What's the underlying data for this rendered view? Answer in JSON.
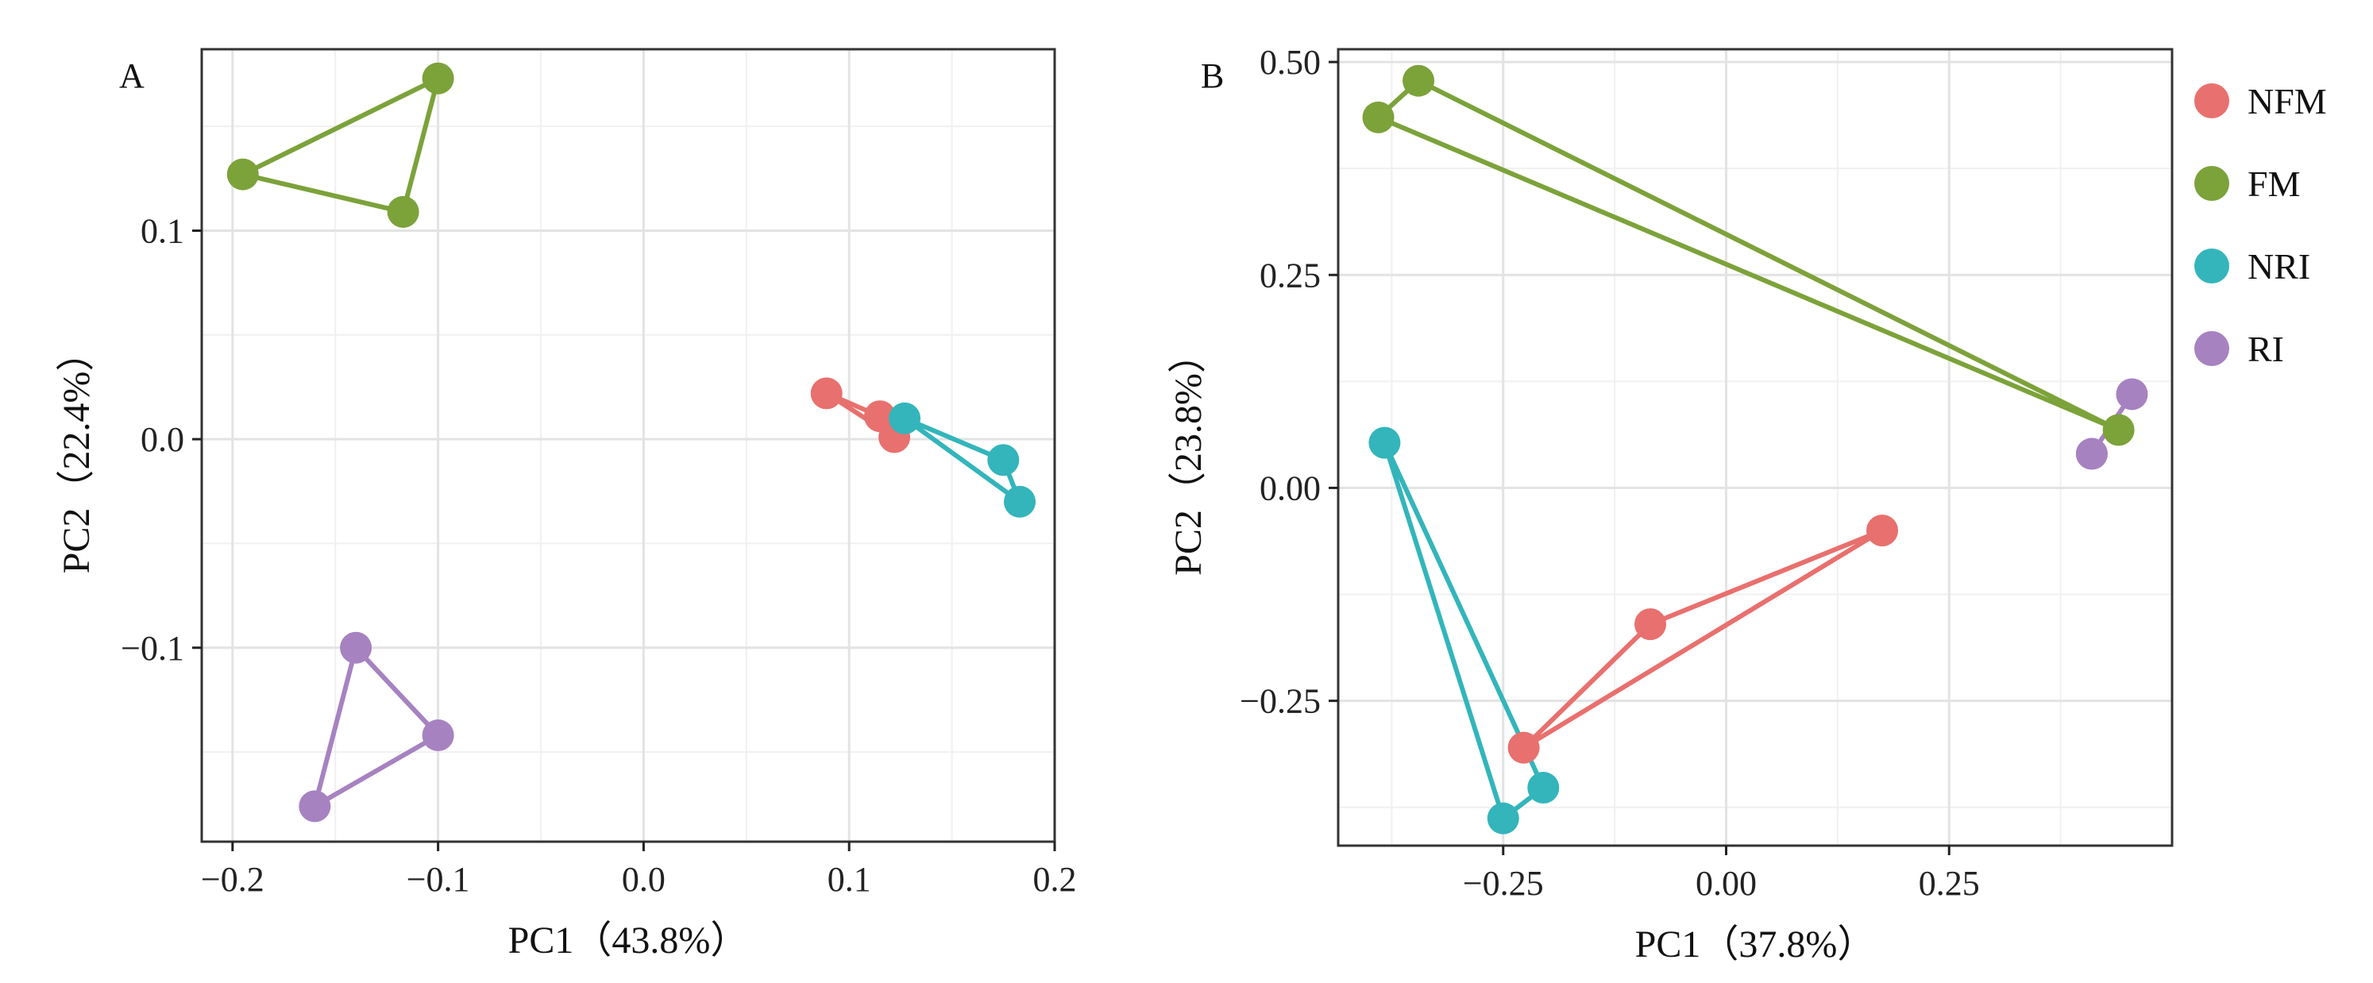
{
  "chart_data": [
    {
      "type": "scatter",
      "panel": "A",
      "xlabel": "PC1（43.8%）",
      "ylabel": "PC2（22.4%）",
      "xlim": [
        -0.215,
        0.2
      ],
      "ylim": [
        -0.193,
        0.187
      ],
      "xticks": [
        -0.2,
        -0.1,
        0.0,
        0.1,
        0.2
      ],
      "xtick_labels": [
        "−0.2",
        "−0.1",
        "0.0",
        "0.1",
        "0.2"
      ],
      "yticks": [
        -0.1,
        0.0,
        0.1
      ],
      "ytick_labels": [
        "−0.1",
        "0.0",
        "0.1"
      ],
      "grid": true,
      "series": [
        {
          "name": "NFM",
          "color": "#E8706E",
          "points": [
            [
              0.089,
              0.022
            ],
            [
              0.115,
              0.011
            ],
            [
              0.122,
              0.001
            ]
          ]
        },
        {
          "name": "FM",
          "color": "#7CA23A",
          "points": [
            [
              -0.195,
              0.127
            ],
            [
              -0.1,
              0.173
            ],
            [
              -0.117,
              0.109
            ]
          ]
        },
        {
          "name": "NRI",
          "color": "#33B5BB",
          "points": [
            [
              0.127,
              0.01
            ],
            [
              0.175,
              -0.01
            ],
            [
              0.183,
              -0.03
            ]
          ]
        },
        {
          "name": "RI",
          "color": "#A682C1",
          "points": [
            [
              -0.14,
              -0.1
            ],
            [
              -0.1,
              -0.142
            ],
            [
              -0.16,
              -0.176
            ]
          ]
        }
      ]
    },
    {
      "type": "scatter",
      "panel": "B",
      "xlabel": "PC1（37.8%）",
      "ylabel": "PC2（23.8%）",
      "xlim": [
        -0.435,
        0.5
      ],
      "ylim": [
        -0.42,
        0.515
      ],
      "xticks": [
        -0.25,
        0.0,
        0.25
      ],
      "xtick_labels": [
        "−0.25",
        "0.00",
        "0.25"
      ],
      "yticks": [
        -0.25,
        0.0,
        0.25,
        0.5
      ],
      "ytick_labels": [
        "−0.25",
        "0.00",
        "0.25",
        "0.50"
      ],
      "grid": true,
      "series": [
        {
          "name": "NFM",
          "color": "#E8706E",
          "points": [
            [
              0.175,
              -0.05
            ],
            [
              -0.085,
              -0.16
            ],
            [
              -0.227,
              -0.305
            ]
          ]
        },
        {
          "name": "FM",
          "color": "#7CA23A",
          "points": [
            [
              -0.39,
              0.435
            ],
            [
              -0.345,
              0.478
            ],
            [
              0.44,
              0.068
            ]
          ]
        },
        {
          "name": "NRI",
          "color": "#33B5BB",
          "points": [
            [
              -0.383,
              0.053
            ],
            [
              -0.25,
              -0.388
            ],
            [
              -0.205,
              -0.352
            ]
          ]
        },
        {
          "name": "RI",
          "color": "#A682C1",
          "points": [
            [
              0.41,
              0.04
            ],
            [
              0.455,
              0.11
            ],
            [
              0.41,
              0.04
            ]
          ]
        }
      ]
    }
  ],
  "legend": {
    "placement": "right",
    "items": [
      {
        "label": "NFM",
        "color": "#E8706E"
      },
      {
        "label": "FM",
        "color": "#7CA23A"
      },
      {
        "label": "NRI",
        "color": "#33B5BB"
      },
      {
        "label": "RI",
        "color": "#A682C1"
      }
    ]
  }
}
